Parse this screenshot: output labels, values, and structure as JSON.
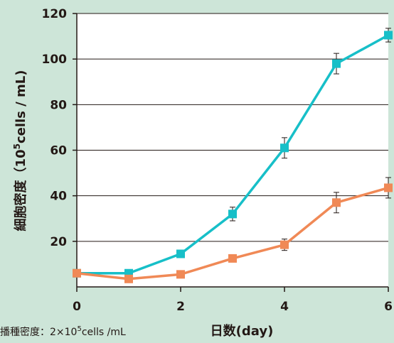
{
  "chart_data": {
    "type": "line",
    "xlabel": "日数(day)",
    "ylabel": "細胞密度 (10⁵cells / mL)",
    "ylabel_parts": {
      "before": "細胞密度（10",
      "sup": "5",
      "after": "cells / mL)"
    },
    "footnote_parts": {
      "before": "播種密度：2×10",
      "sup": "5",
      "after": "cells /mL"
    },
    "xlim": [
      0,
      6
    ],
    "ylim": [
      0,
      120
    ],
    "xticks": [
      0,
      2,
      4,
      6
    ],
    "yticks": [
      20,
      40,
      60,
      80,
      100,
      120
    ],
    "grid": "horizontal",
    "x": [
      0,
      1,
      2,
      3,
      4,
      5,
      6
    ],
    "series": [
      {
        "color": "#17bfc8",
        "values": [
          6,
          6,
          14.5,
          32,
          61,
          98,
          110.5
        ],
        "errors": [
          0,
          0,
          0,
          3,
          4.5,
          4.5,
          3
        ]
      },
      {
        "color": "#f08956",
        "values": [
          6,
          3.5,
          5.5,
          12.5,
          18.5,
          37,
          43.5
        ],
        "errors": [
          0,
          0,
          0,
          0,
          2.5,
          4.5,
          4.5
        ]
      }
    ]
  }
}
